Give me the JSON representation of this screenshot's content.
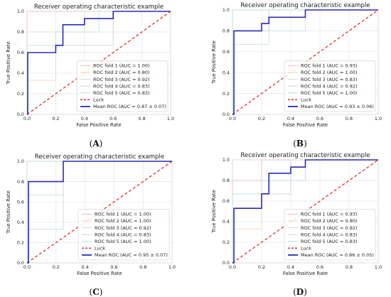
{
  "chart_data": [
    {
      "type": "line",
      "panel_label": "A",
      "title": "Receiver operating characteristic example",
      "xlabel": "False Positive Rate",
      "ylabel": "True Positive Rate",
      "xlim": [
        0,
        1
      ],
      "ylim": [
        0,
        1
      ],
      "xticks": [
        "0.0",
        "0.2",
        "0.4",
        "0.6",
        "0.8",
        "1.0"
      ],
      "yticks": [
        "0.0",
        "0.2",
        "0.4",
        "0.6",
        "0.8",
        "1.0"
      ],
      "grid": true,
      "legend_position": "lower-right",
      "series": [
        {
          "name": "ROC fold 1 (AUC = 1.00)",
          "color": "#f4b6b6",
          "width": 0.8,
          "x": [
            0,
            0,
            1
          ],
          "y": [
            0,
            1,
            1
          ]
        },
        {
          "name": "ROC fold 2 (AUC = 0.80)",
          "color": "#f7d1a8",
          "width": 0.8,
          "x": [
            0,
            0,
            0.2,
            0.2,
            0.6,
            0.6,
            1
          ],
          "y": [
            0,
            0.33,
            0.33,
            0.67,
            0.67,
            1,
            1
          ]
        },
        {
          "name": "ROC fold 3 (AUC = 0.92)",
          "color": "#c9e3c9",
          "width": 0.8,
          "x": [
            0,
            0,
            0.4,
            0.4,
            1
          ],
          "y": [
            0,
            0.8,
            0.8,
            1,
            1
          ]
        },
        {
          "name": "ROC fold 4 (AUC = 0.83)",
          "color": "#c6d6ea",
          "width": 0.8,
          "x": [
            0,
            0,
            0.6,
            0.6,
            1
          ],
          "y": [
            0,
            0.67,
            0.67,
            1,
            1
          ]
        },
        {
          "name": "ROC fold 5 (AUC = 0.83)",
          "color": "#b7e0e4",
          "width": 0.8,
          "x": [
            0,
            0,
            0.2,
            0.2,
            0.5,
            0.5,
            1
          ],
          "y": [
            0,
            0.67,
            0.67,
            0.8,
            0.8,
            1,
            1
          ]
        },
        {
          "name": "Luck",
          "color": "#e03030",
          "width": 1.3,
          "dash": true,
          "x": [
            0,
            1
          ],
          "y": [
            0,
            1
          ]
        },
        {
          "name": "Mean ROC (AUC = 0.87 ± 0.07)",
          "color": "#2a2ab8",
          "width": 1.6,
          "x": [
            0,
            0.005,
            0.005,
            0.2,
            0.2,
            0.25,
            0.25,
            0.4,
            0.4,
            0.6,
            0.6,
            1.0
          ],
          "y": [
            0,
            0,
            0.6,
            0.6,
            0.67,
            0.67,
            0.87,
            0.87,
            0.93,
            0.93,
            1,
            1
          ]
        }
      ]
    },
    {
      "type": "line",
      "panel_label": "B",
      "title": "Receiver operating characteristic example",
      "xlabel": "False Positive Rate",
      "ylabel": "True Positive Rate",
      "xlim": [
        0,
        1
      ],
      "ylim": [
        0,
        1
      ],
      "xticks": [
        "0.0",
        "0.2",
        "0.4",
        "0.6",
        "0.8",
        "1.0"
      ],
      "yticks": [
        "0.0",
        "0.2",
        "0.4",
        "0.6",
        "0.8",
        "1.0"
      ],
      "grid": true,
      "legend_position": "lower-right",
      "series": [
        {
          "name": "ROC fold 1 (AUC = 0.93)",
          "color": "#f4b6b6",
          "width": 0.8,
          "x": [
            0,
            0,
            0.25,
            0.25,
            1
          ],
          "y": [
            0,
            0.8,
            0.8,
            1,
            1
          ]
        },
        {
          "name": "ROC fold 2 (AUC = 1.00)",
          "color": "#f7d1a8",
          "width": 0.8,
          "x": [
            0,
            0,
            1
          ],
          "y": [
            0,
            1,
            1
          ]
        },
        {
          "name": "ROC fold 3 (AUC = 0.83)",
          "color": "#c9e3c9",
          "width": 0.8,
          "x": [
            0,
            0,
            0.25,
            0.25,
            0.5,
            0.5,
            1
          ],
          "y": [
            0,
            0.67,
            0.67,
            0.8,
            0.8,
            1,
            1
          ]
        },
        {
          "name": "ROC fold 4 (AUC = 0.92)",
          "color": "#c6d6ea",
          "width": 0.8,
          "x": [
            0,
            0,
            0.25,
            0.25,
            1
          ],
          "y": [
            0,
            0.8,
            0.8,
            1,
            1
          ]
        },
        {
          "name": "ROC fold 5 (AUC = 1.00)",
          "color": "#b7e0e4",
          "width": 0.8,
          "x": [
            0,
            0,
            1
          ],
          "y": [
            0,
            1,
            1
          ]
        },
        {
          "name": "Luck",
          "color": "#e03030",
          "width": 1.3,
          "dash": true,
          "x": [
            0,
            1
          ],
          "y": [
            0,
            1
          ]
        },
        {
          "name": "Mean ROC (AUC = 0.93 ± 0.06)",
          "color": "#2a2ab8",
          "width": 1.6,
          "x": [
            0,
            0.01,
            0.01,
            0.2,
            0.2,
            0.25,
            0.25,
            0.5,
            0.5,
            1.0
          ],
          "y": [
            0,
            0,
            0.8,
            0.8,
            0.87,
            0.87,
            0.93,
            0.93,
            1,
            1
          ]
        }
      ]
    },
    {
      "type": "line",
      "panel_label": "C",
      "title": "Receiver operating characteristic example",
      "xlabel": "False Positive Rate",
      "ylabel": "True Positive Rate",
      "xlim": [
        0,
        1
      ],
      "ylim": [
        0,
        1
      ],
      "xticks": [
        "0.0",
        "0.2",
        "0.4",
        "0.6",
        "0.8",
        "1.0"
      ],
      "yticks": [
        "0.0",
        "0.2",
        "0.4",
        "0.6",
        "0.8",
        "1.0"
      ],
      "grid": true,
      "legend_position": "lower-right",
      "series": [
        {
          "name": "ROC fold 1 (AUC = 1.00)",
          "color": "#f4b6b6",
          "width": 0.8,
          "x": [
            0,
            0,
            1
          ],
          "y": [
            0,
            1,
            1
          ]
        },
        {
          "name": "ROC fold 2 (AUC = 1.00)",
          "color": "#f7d1a8",
          "width": 0.8,
          "x": [
            0,
            0,
            1
          ],
          "y": [
            0,
            1,
            1
          ]
        },
        {
          "name": "ROC fold 3 (AUC = 0.92)",
          "color": "#c9e3c9",
          "width": 0.8,
          "x": [
            0,
            0,
            0.25,
            0.25,
            1
          ],
          "y": [
            0,
            0.67,
            0.67,
            1,
            1
          ]
        },
        {
          "name": "ROC fold 4 (AUC = 0.83)",
          "color": "#c6d6ea",
          "width": 0.8,
          "x": [
            0,
            0,
            0.25,
            0.25,
            1
          ],
          "y": [
            0,
            0.33,
            0.33,
            1,
            1
          ]
        },
        {
          "name": "ROC fold 5 (AUC = 1.00)",
          "color": "#b7e0e4",
          "width": 0.8,
          "x": [
            0,
            0,
            1
          ],
          "y": [
            0,
            1,
            1
          ]
        },
        {
          "name": "Luck",
          "color": "#e03030",
          "width": 1.3,
          "dash": true,
          "x": [
            0,
            1
          ],
          "y": [
            0,
            1
          ]
        },
        {
          "name": "Mean ROC (AUC = 0.95 ± 0.07)",
          "color": "#2a2ab8",
          "width": 1.6,
          "x": [
            0,
            0.01,
            0.01,
            0.25,
            0.25,
            1.0
          ],
          "y": [
            0,
            0,
            0.8,
            0.8,
            1,
            1
          ]
        }
      ]
    },
    {
      "type": "line",
      "panel_label": "D",
      "title": "Receiver operating characteristic example",
      "xlabel": "False Positive Rate",
      "ylabel": "True Positive Rate",
      "xlim": [
        0,
        1
      ],
      "ylim": [
        0,
        1
      ],
      "xticks": [
        "0.0",
        "0.2",
        "0.4",
        "0.6",
        "0.8",
        "1.0"
      ],
      "yticks": [
        "0.0",
        "0.2",
        "0.4",
        "0.6",
        "0.8",
        "1.0"
      ],
      "grid": true,
      "legend_position": "lower-right",
      "series": [
        {
          "name": "ROC fold 1 (AUC = 0.93)",
          "color": "#f4b6b6",
          "width": 0.8,
          "x": [
            0,
            0,
            0.2,
            0.2,
            1
          ],
          "y": [
            0,
            0.8,
            0.8,
            1,
            1
          ]
        },
        {
          "name": "ROC fold 2 (AUC = 0.80)",
          "color": "#f7d1a8",
          "width": 0.8,
          "x": [
            0,
            0,
            0.2,
            0.2,
            0.4,
            0.4,
            1
          ],
          "y": [
            0,
            0.33,
            0.33,
            0.67,
            0.67,
            1,
            1
          ]
        },
        {
          "name": "ROC fold 3 (AUC = 0.92)",
          "color": "#c9e3c9",
          "width": 0.8,
          "x": [
            0,
            0,
            0.2,
            0.2,
            0.5,
            0.5,
            1
          ],
          "y": [
            0,
            0.67,
            0.67,
            0.8,
            0.8,
            1,
            1
          ]
        },
        {
          "name": "ROC fold 4 (AUC = 0.83)",
          "color": "#c6d6ea",
          "width": 0.8,
          "x": [
            0,
            0,
            0.4,
            0.4,
            1
          ],
          "y": [
            0,
            0.67,
            0.67,
            1,
            1
          ]
        },
        {
          "name": "ROC fold 5 (AUC = 0.83)",
          "color": "#b7e0e4",
          "width": 0.8,
          "x": [
            0,
            0,
            0.2,
            0.2,
            0.5,
            0.5,
            1
          ],
          "y": [
            0,
            0.67,
            0.67,
            0.8,
            0.8,
            1,
            1
          ]
        },
        {
          "name": "Luck",
          "color": "#e03030",
          "width": 1.3,
          "dash": true,
          "x": [
            0,
            1
          ],
          "y": [
            0,
            1
          ]
        },
        {
          "name": "Mean ROC (AUC = 0.86 ± 0.05)",
          "color": "#2a2ab8",
          "width": 1.6,
          "x": [
            0,
            0.01,
            0.01,
            0.2,
            0.2,
            0.25,
            0.25,
            0.4,
            0.4,
            0.5,
            0.5,
            1.0
          ],
          "y": [
            0,
            0,
            0.53,
            0.53,
            0.67,
            0.67,
            0.87,
            0.87,
            0.93,
            0.93,
            1,
            1
          ]
        }
      ]
    }
  ]
}
